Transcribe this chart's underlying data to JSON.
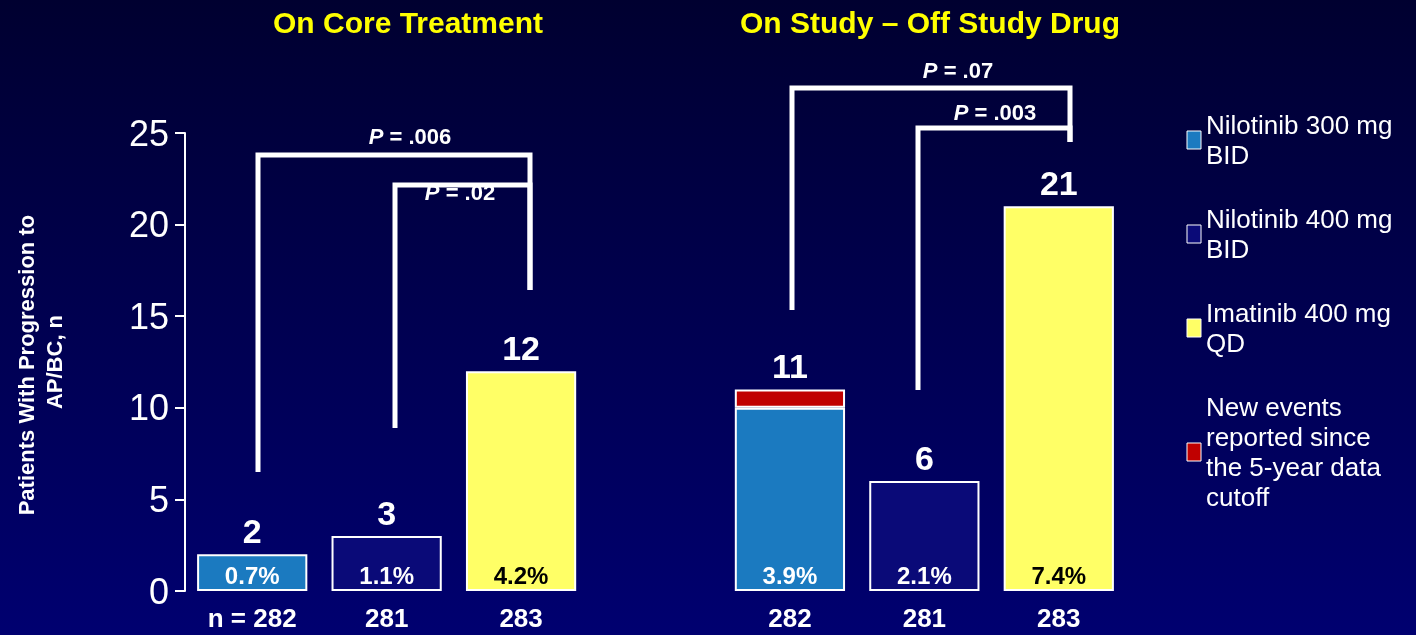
{
  "chart_data": {
    "type": "bar",
    "stacked": true,
    "annotations": [
      "On Core Treatment",
      "On Study – Off Study Drug",
      "P = .006",
      "P = .02",
      "P = .07",
      "P = .003",
      "0.7%",
      "1.1%",
      "4.2%",
      "3.9%",
      "2.1%",
      "7.4%"
    ],
    "ylabel": "Patients With Progression to AP/BC, n",
    "categories": [
      "n = 282",
      "281",
      "283",
      null,
      "282",
      "281",
      "283"
    ],
    "series": [
      {
        "name": "Nilotinib 300 mg BID",
        "color": "#1b7ac0",
        "values": [
          2,
          null,
          null,
          null,
          10,
          null,
          null
        ]
      },
      {
        "name": "Nilotinib 400 mg BID",
        "color": "#0a0a78",
        "values": [
          null,
          3,
          null,
          null,
          null,
          6,
          null
        ]
      },
      {
        "name": "Imatinib 400 mg QD",
        "color": "#ffff66",
        "values": [
          null,
          null,
          12,
          null,
          null,
          null,
          21
        ]
      },
      {
        "name": "New events reported since the 5-year data cutoff",
        "color": "#c00000",
        "values": [
          null,
          null,
          null,
          null,
          1,
          null,
          null
        ]
      }
    ],
    "totals": [
      "2",
      "3",
      "12",
      null,
      "11",
      "6",
      "21"
    ],
    "ylim": [
      0,
      25
    ],
    "yticks": [
      0,
      5,
      10,
      15,
      20,
      25
    ],
    "grid": false,
    "legend": "right"
  }
}
